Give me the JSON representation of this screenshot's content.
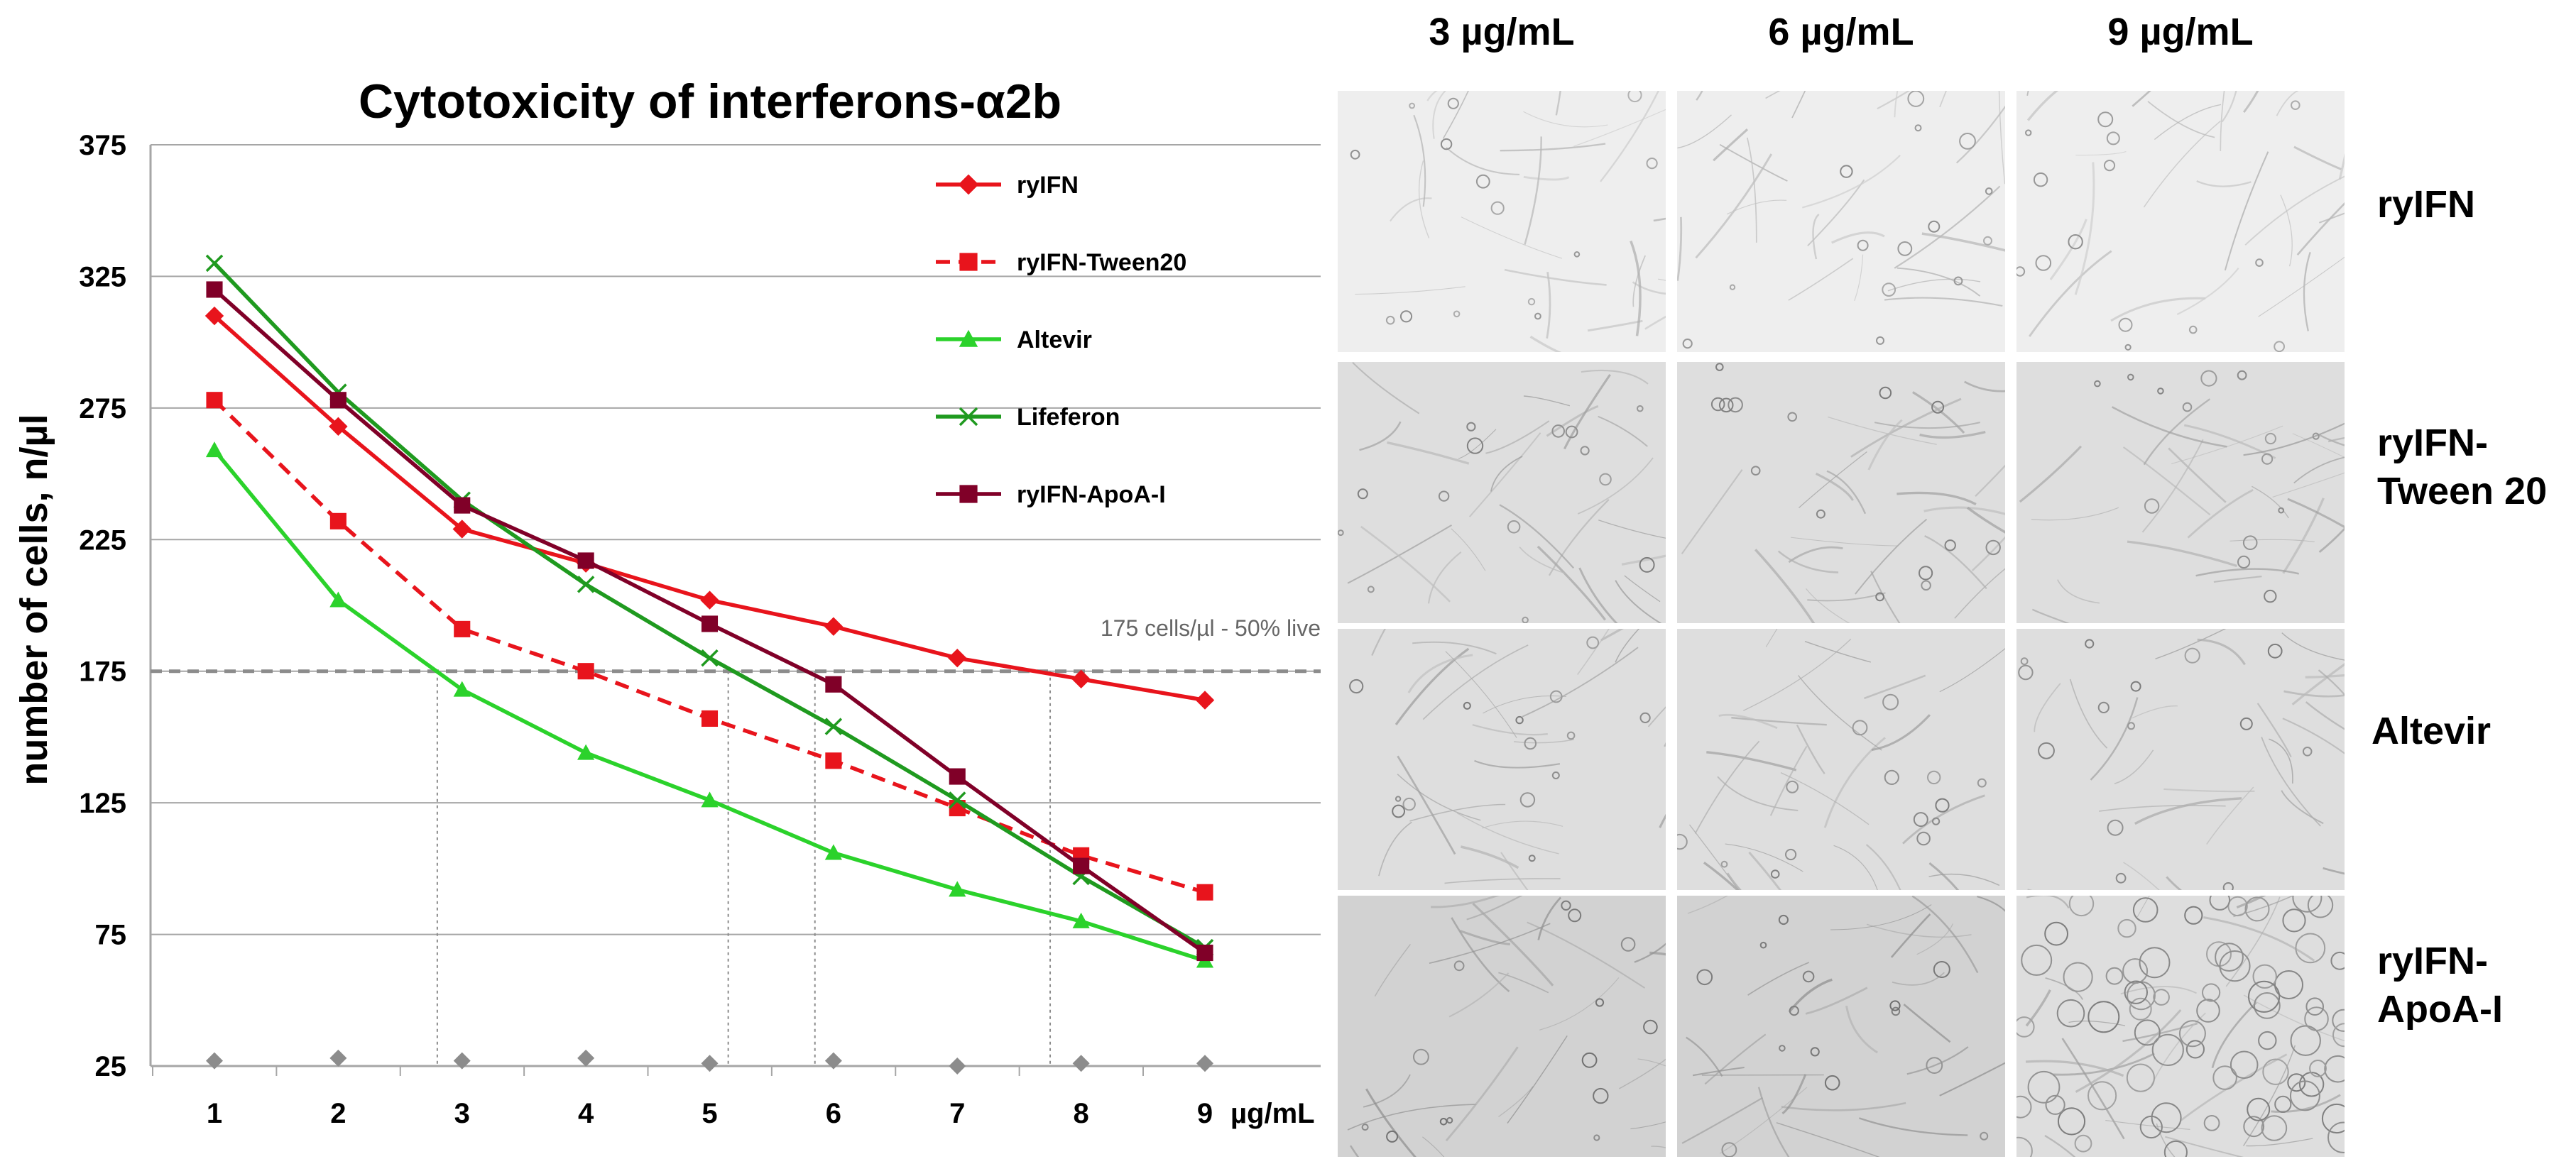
{
  "chart_data": {
    "type": "line",
    "title": "Cytotoxicity of interferons-α2b",
    "ylabel": "number of cells, n/µl",
    "xunit_label": "µg/mL",
    "x": [
      1,
      2,
      3,
      4,
      5,
      6,
      7,
      8,
      9
    ],
    "ylim": [
      25,
      375
    ],
    "yticks": [
      25,
      75,
      125,
      175,
      225,
      275,
      325,
      375
    ],
    "grid": true,
    "legend_position": "top-right",
    "series": [
      {
        "name": "ryIFN",
        "color": "#e8141c",
        "marker": "diamond",
        "dashed": false,
        "values": [
          310,
          268,
          229,
          216,
          202,
          192,
          180,
          172,
          164
        ]
      },
      {
        "name": "ryIFN-Tween20",
        "color": "#e8141c",
        "marker": "square",
        "dashed": true,
        "values": [
          278,
          232,
          191,
          175,
          157,
          141,
          123,
          105,
          91
        ]
      },
      {
        "name": "Altevir",
        "color": "#2bd22b",
        "marker": "triangle",
        "dashed": false,
        "values": [
          259,
          202,
          168,
          144,
          126,
          106,
          92,
          80,
          65
        ]
      },
      {
        "name": "Lifeferon",
        "color": "#1f9a1f",
        "marker": "x",
        "dashed": false,
        "values": [
          330,
          281,
          240,
          208,
          180,
          154,
          126,
          97,
          70
        ]
      },
      {
        "name": "ryIFN-ApoA-I",
        "color": "#800028",
        "marker": "square",
        "dashed": false,
        "values": [
          320,
          278,
          238,
          217,
          193,
          170,
          135,
          101,
          68
        ]
      }
    ],
    "baseline_markers": {
      "color": "#8c8c8c",
      "values": [
        27,
        28,
        27,
        28,
        26,
        27,
        25,
        26,
        26
      ]
    },
    "threshold": {
      "value": 175,
      "label": "175 cells/µl - 50% live"
    },
    "ic50_x": [
      2.8,
      5.15,
      5.85,
      7.75
    ]
  },
  "micrographs": {
    "columns": [
      "3 µg/mL",
      "6 µg/mL",
      "9 µg/mL"
    ],
    "rows": [
      {
        "label": "ryIFN"
      },
      {
        "label": "ryIFN-\nTween 20"
      },
      {
        "label": "Altevir"
      },
      {
        "label": "ryIFN-\nApoA-I"
      }
    ]
  }
}
